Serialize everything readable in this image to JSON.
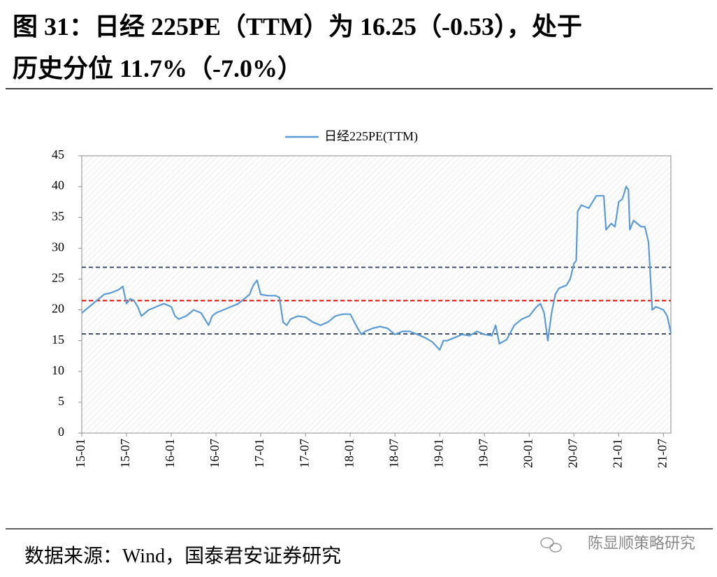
{
  "header": {
    "title_lines": [
      "图 31：日经 225PE（TTM）为 16.25（-0.53），处于",
      "历史分位 11.7%（-7.0%）"
    ]
  },
  "chart_data": {
    "type": "line",
    "x": [
      0,
      1,
      2,
      3,
      4,
      5,
      5.5,
      6,
      6.5,
      7,
      7.5,
      8,
      9,
      10,
      11,
      12,
      12.5,
      13,
      14,
      15,
      16,
      17,
      17.5,
      18,
      19,
      20,
      21,
      22,
      22.5,
      23,
      23.5,
      24,
      25,
      26,
      26.5,
      27,
      27.5,
      28,
      29,
      30,
      31,
      32,
      33,
      34,
      35,
      36,
      37,
      37.5,
      38,
      39,
      40,
      41,
      42,
      43,
      44,
      45,
      46,
      47,
      48,
      48.5,
      49,
      50,
      51,
      52,
      53,
      54,
      55,
      55.5,
      56,
      57,
      58,
      59,
      60,
      61,
      61.5,
      62,
      62.5,
      63,
      63.5,
      64,
      65,
      65.5,
      66,
      66.3,
      66.5,
      67,
      68,
      69,
      70,
      70.3,
      71,
      71.5,
      72,
      72.5,
      73,
      73.3,
      73.5,
      74,
      75,
      75.5,
      76,
      76.5,
      77,
      78,
      78.5,
      79
    ],
    "series": [
      {
        "name": "日经225PE(TTM)",
        "color": "#5b9bd5",
        "values": [
          19.5,
          20.5,
          21.5,
          22.5,
          22.8,
          23.3,
          23.8,
          21.0,
          21.8,
          21.5,
          20.5,
          19.0,
          20.0,
          20.5,
          21.0,
          20.5,
          19.0,
          18.5,
          19.0,
          20.0,
          19.5,
          17.5,
          19.0,
          19.5,
          20.0,
          20.5,
          21.0,
          22.0,
          22.5,
          24.0,
          24.8,
          22.5,
          22.3,
          22.3,
          22.0,
          18.0,
          17.5,
          18.5,
          19.0,
          18.8,
          18.0,
          17.5,
          18.0,
          19.0,
          19.3,
          19.3,
          17.0,
          16.0,
          16.5,
          17.0,
          17.3,
          17.0,
          16.0,
          16.5,
          16.5,
          16.0,
          15.5,
          14.8,
          13.5,
          15.0,
          15.0,
          15.5,
          16.0,
          15.8,
          16.5,
          16.0,
          15.8,
          17.5,
          14.5,
          15.2,
          17.5,
          18.5,
          19.0,
          20.5,
          21.0,
          19.5,
          15.0,
          19.5,
          22.5,
          23.5,
          24.0,
          25.0,
          27.5,
          28.0,
          36.0,
          37.0,
          36.5,
          38.5,
          38.5,
          33.0,
          34.0,
          33.5,
          37.5,
          38.0,
          40.0,
          39.5,
          33.0,
          34.5,
          33.5,
          33.5,
          31.0,
          20.0,
          20.5,
          20.0,
          19.0,
          16.25
        ]
      }
    ],
    "xlim": [
      0,
      79
    ],
    "xticks": [
      {
        "value": 0,
        "label": "15-01"
      },
      {
        "value": 6,
        "label": "15-07"
      },
      {
        "value": 12,
        "label": "16-01"
      },
      {
        "value": 18,
        "label": "16-07"
      },
      {
        "value": 24,
        "label": "17-01"
      },
      {
        "value": 30,
        "label": "17-07"
      },
      {
        "value": 36,
        "label": "18-01"
      },
      {
        "value": 42,
        "label": "18-07"
      },
      {
        "value": 48,
        "label": "19-01"
      },
      {
        "value": 54,
        "label": "19-07"
      },
      {
        "value": 60,
        "label": "20-01"
      },
      {
        "value": 66,
        "label": "20-07"
      },
      {
        "value": 72,
        "label": "21-01"
      },
      {
        "value": 78,
        "label": "21-07"
      }
    ],
    "ylim": [
      0,
      45
    ],
    "yticks": [
      0,
      5,
      10,
      15,
      20,
      25,
      30,
      35,
      40,
      45
    ],
    "reference_lines": [
      {
        "value": 26.9,
        "color": "#44546a"
      },
      {
        "value": 21.5,
        "color": "#ff0000"
      },
      {
        "value": 16.1,
        "color": "#44546a"
      }
    ],
    "legend": "top"
  },
  "footer": {
    "source": "数据来源：Wind，国泰君安证券研究",
    "watermark": "陈显顺策略研究"
  }
}
